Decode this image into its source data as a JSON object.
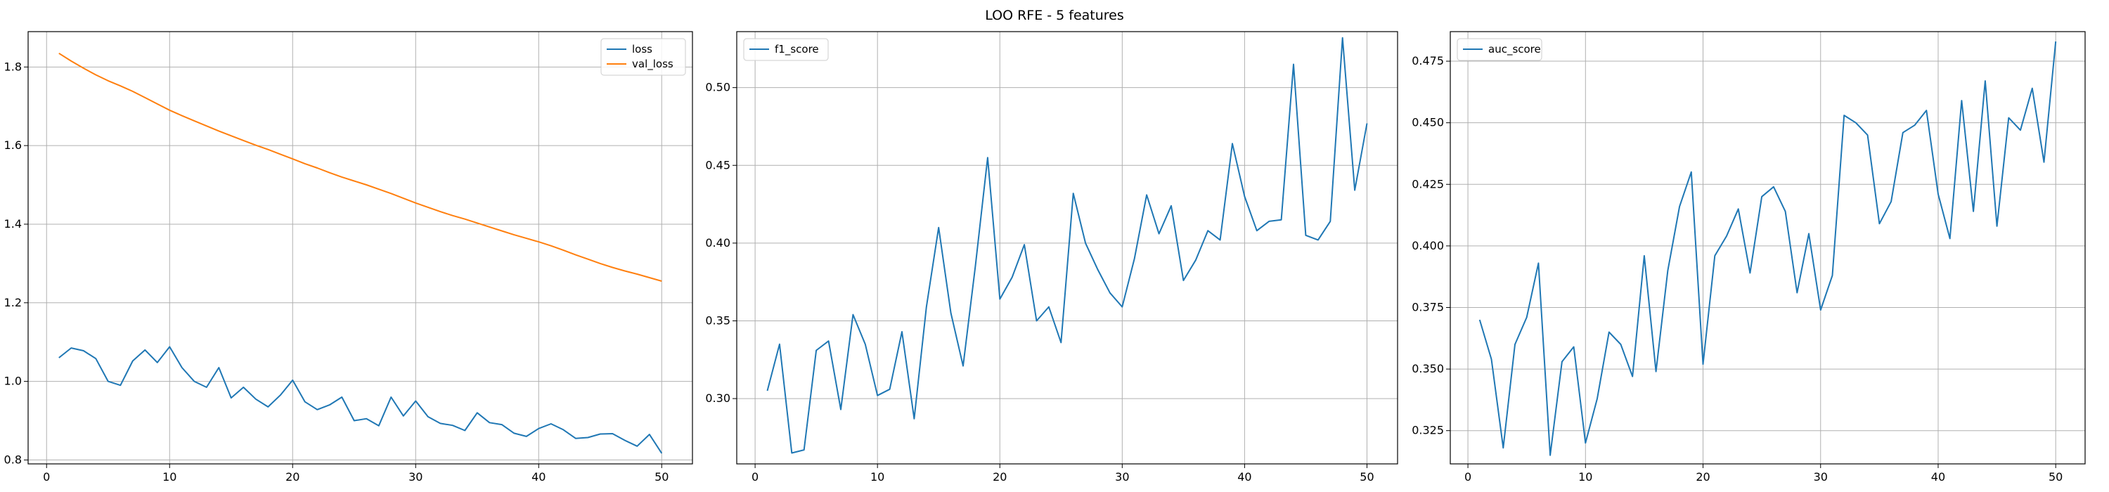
{
  "figure_title": "LOO RFE - 5 features",
  "chart_data": [
    {
      "type": "line",
      "xlim": [
        -1.5,
        52.5
      ],
      "ylim": [
        0.79,
        1.89
      ],
      "xticks": [
        0,
        10,
        20,
        30,
        40,
        50
      ],
      "yticks": [
        0.8,
        1.0,
        1.2,
        1.4,
        1.6,
        1.8
      ],
      "ytick_labels": [
        "0.8",
        "1.0",
        "1.2",
        "1.4",
        "1.6",
        "1.8"
      ],
      "grid": true,
      "legend_position": "top-right",
      "x": [
        1,
        2,
        3,
        4,
        5,
        6,
        7,
        8,
        9,
        10,
        11,
        12,
        13,
        14,
        15,
        16,
        17,
        18,
        19,
        20,
        21,
        22,
        23,
        24,
        25,
        26,
        27,
        28,
        29,
        30,
        31,
        32,
        33,
        34,
        35,
        36,
        37,
        38,
        39,
        40,
        41,
        42,
        43,
        44,
        45,
        46,
        47,
        48,
        49,
        50
      ],
      "series": [
        {
          "name": "loss",
          "color": "#1f77b4",
          "values": [
            1.06,
            1.085,
            1.078,
            1.058,
            1.0,
            0.99,
            1.052,
            1.08,
            1.048,
            1.088,
            1.035,
            1.0,
            0.985,
            1.035,
            0.958,
            0.985,
            0.955,
            0.935,
            0.965,
            1.003,
            0.948,
            0.928,
            0.94,
            0.96,
            0.9,
            0.905,
            0.887,
            0.96,
            0.912,
            0.95,
            0.91,
            0.893,
            0.888,
            0.875,
            0.92,
            0.895,
            0.89,
            0.868,
            0.86,
            0.88,
            0.892,
            0.877,
            0.855,
            0.857,
            0.866,
            0.867,
            0.85,
            0.835,
            0.865,
            0.817
          ]
        },
        {
          "name": "val_loss",
          "color": "#ff7f0e",
          "values": [
            1.835,
            1.815,
            1.797,
            1.78,
            1.765,
            1.752,
            1.738,
            1.722,
            1.706,
            1.69,
            1.676,
            1.663,
            1.65,
            1.637,
            1.625,
            1.613,
            1.601,
            1.59,
            1.578,
            1.566,
            1.554,
            1.543,
            1.531,
            1.52,
            1.51,
            1.5,
            1.489,
            1.478,
            1.466,
            1.454,
            1.443,
            1.432,
            1.422,
            1.413,
            1.403,
            1.393,
            1.383,
            1.373,
            1.364,
            1.355,
            1.345,
            1.334,
            1.322,
            1.311,
            1.3,
            1.29,
            1.281,
            1.273,
            1.264,
            1.255
          ]
        }
      ]
    },
    {
      "type": "line",
      "xlim": [
        -1.5,
        52.5
      ],
      "ylim": [
        0.258,
        0.536
      ],
      "xticks": [
        0,
        10,
        20,
        30,
        40,
        50
      ],
      "yticks": [
        0.3,
        0.35,
        0.4,
        0.45,
        0.5
      ],
      "ytick_labels": [
        "0.30",
        "0.35",
        "0.40",
        "0.45",
        "0.50"
      ],
      "grid": true,
      "legend_position": "top-left",
      "x": [
        1,
        2,
        3,
        4,
        5,
        6,
        7,
        8,
        9,
        10,
        11,
        12,
        13,
        14,
        15,
        16,
        17,
        18,
        19,
        20,
        21,
        22,
        23,
        24,
        25,
        26,
        27,
        28,
        29,
        30,
        31,
        32,
        33,
        34,
        35,
        36,
        37,
        38,
        39,
        40,
        41,
        42,
        43,
        44,
        45,
        46,
        47,
        48,
        49,
        50
      ],
      "series": [
        {
          "name": "f1_score",
          "color": "#1f77b4",
          "values": [
            0.305,
            0.335,
            0.265,
            0.267,
            0.331,
            0.337,
            0.293,
            0.354,
            0.335,
            0.302,
            0.306,
            0.343,
            0.287,
            0.359,
            0.41,
            0.355,
            0.321,
            0.385,
            0.455,
            0.364,
            0.378,
            0.399,
            0.35,
            0.359,
            0.336,
            0.432,
            0.4,
            0.383,
            0.368,
            0.359,
            0.39,
            0.431,
            0.406,
            0.424,
            0.376,
            0.389,
            0.408,
            0.402,
            0.464,
            0.43,
            0.408,
            0.414,
            0.415,
            0.515,
            0.405,
            0.402,
            0.414,
            0.532,
            0.434,
            0.477
          ]
        }
      ]
    },
    {
      "type": "line",
      "xlim": [
        -1.5,
        52.5
      ],
      "ylim": [
        0.3115,
        0.487
      ],
      "xticks": [
        0,
        10,
        20,
        30,
        40,
        50
      ],
      "yticks": [
        0.325,
        0.35,
        0.375,
        0.4,
        0.425,
        0.45,
        0.475
      ],
      "ytick_labels": [
        "0.325",
        "0.350",
        "0.375",
        "0.400",
        "0.425",
        "0.450",
        "0.475"
      ],
      "grid": true,
      "legend_position": "top-left",
      "x": [
        1,
        2,
        3,
        4,
        5,
        6,
        7,
        8,
        9,
        10,
        11,
        12,
        13,
        14,
        15,
        16,
        17,
        18,
        19,
        20,
        21,
        22,
        23,
        24,
        25,
        26,
        27,
        28,
        29,
        30,
        31,
        32,
        33,
        34,
        35,
        36,
        37,
        38,
        39,
        40,
        41,
        42,
        43,
        44,
        45,
        46,
        47,
        48,
        49,
        50
      ],
      "series": [
        {
          "name": "auc_score",
          "color": "#1f77b4",
          "values": [
            0.37,
            0.354,
            0.318,
            0.36,
            0.371,
            0.393,
            0.315,
            0.353,
            0.359,
            0.32,
            0.338,
            0.365,
            0.36,
            0.347,
            0.396,
            0.349,
            0.39,
            0.416,
            0.43,
            0.352,
            0.396,
            0.404,
            0.415,
            0.389,
            0.42,
            0.424,
            0.414,
            0.381,
            0.405,
            0.374,
            0.388,
            0.453,
            0.45,
            0.445,
            0.409,
            0.418,
            0.446,
            0.449,
            0.455,
            0.421,
            0.403,
            0.459,
            0.414,
            0.467,
            0.408,
            0.452,
            0.447,
            0.464,
            0.434,
            0.483
          ]
        }
      ]
    }
  ]
}
